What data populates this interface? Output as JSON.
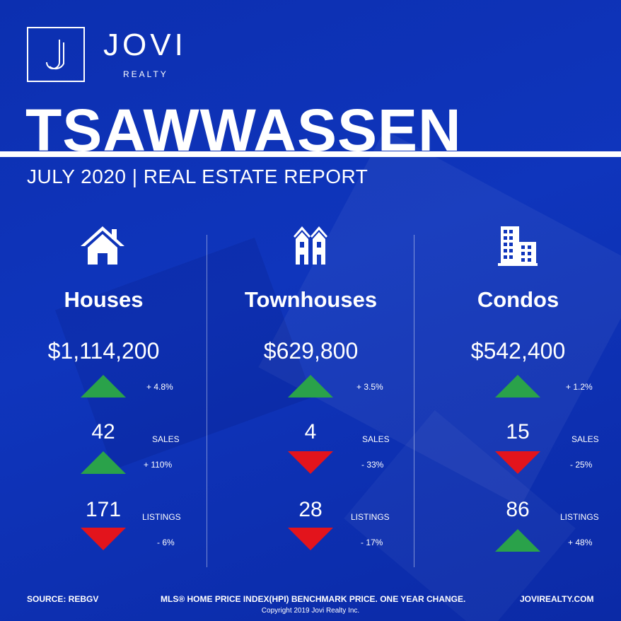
{
  "colors": {
    "background": "#0f35bc",
    "up": "#2aa24a",
    "down": "#e3141c",
    "text": "#ffffff"
  },
  "brand": {
    "name": "JOVI",
    "sub": "REALTY",
    "logo_letter": "J"
  },
  "title": "TSAWWASSEN",
  "subtitle": "JULY 2020 | REAL ESTATE REPORT",
  "columns": [
    {
      "icon": "house-icon",
      "title": "Houses",
      "price": "$1,114,200",
      "price_change": "+ 4.8%",
      "price_trend": "up",
      "sales": "42",
      "sales_label": "SALES",
      "sales_change": "+ 110%",
      "sales_trend": "up",
      "listings": "171",
      "listings_label": "LISTINGS",
      "listings_change": "- 6%",
      "listings_trend": "down"
    },
    {
      "icon": "townhouse-icon",
      "title": "Townhouses",
      "price": "$629,800",
      "price_change": "+ 3.5%",
      "price_trend": "up",
      "sales": "4",
      "sales_label": "SALES",
      "sales_change": "- 33%",
      "sales_trend": "down",
      "listings": "28",
      "listings_label": "LISTINGS",
      "listings_change": "- 17%",
      "listings_trend": "down"
    },
    {
      "icon": "condo-building-icon",
      "title": "Condos",
      "price": "$542,400",
      "price_change": "+ 1.2%",
      "price_trend": "up",
      "sales": "15",
      "sales_label": "SALES",
      "sales_change": "- 25%",
      "sales_trend": "down",
      "listings": "86",
      "listings_label": "LISTINGS",
      "listings_change": "+ 48%",
      "listings_trend": "up"
    }
  ],
  "footer": {
    "source": "SOURCE:  REBGV",
    "note": "MLS® HOME PRICE INDEX(HPI) BENCHMARK PRICE. ONE YEAR CHANGE.",
    "website": "JOVIREALTY.COM",
    "copyright": "Copyright 2019 Jovi Realty Inc."
  }
}
